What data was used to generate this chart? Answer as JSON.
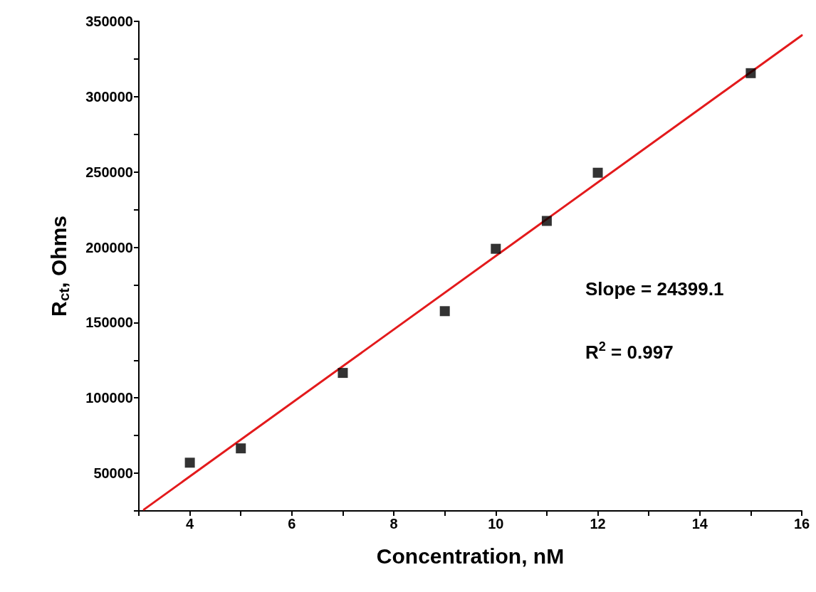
{
  "chart_data": {
    "type": "scatter",
    "xlabel": "Concentration, nM",
    "ylabel": "R$_{ct}$, Ohms",
    "xlim": [
      3,
      16
    ],
    "ylim": [
      25000,
      350000
    ],
    "xticks": [
      {
        "value": 3,
        "label": null
      },
      4,
      {
        "value": 5,
        "label": null
      },
      6,
      {
        "value": 7,
        "label": null
      },
      8,
      {
        "value": 9,
        "label": null
      },
      10,
      {
        "value": 11,
        "label": null
      },
      12,
      {
        "value": 13,
        "label": null
      },
      14,
      {
        "value": 15,
        "label": null
      },
      16
    ],
    "yticks": [
      {
        "value": 25000,
        "label": null
      },
      50000,
      {
        "value": 75000,
        "label": null
      },
      100000,
      {
        "value": 125000,
        "label": null
      },
      150000,
      {
        "value": 175000,
        "label": null
      },
      200000,
      {
        "value": 225000,
        "label": null
      },
      250000,
      {
        "value": 275000,
        "label": null
      },
      300000,
      {
        "value": 325000,
        "label": null
      },
      350000
    ],
    "marker": "square",
    "grid": false,
    "series": [
      {
        "color": "#000000",
        "x": [
          4,
          5,
          7,
          9,
          10,
          11,
          12,
          15
        ],
        "values": [
          57000,
          66500,
          116600,
          157600,
          199000,
          217500,
          249500,
          315600
        ]
      },
      {
        "type": "line",
        "color": "#e31a1c",
        "marker": "none",
        "line_style": "solid",
        "x": [
          3.1,
          16
        ],
        "values": [
          25900,
          340700
        ]
      }
    ],
    "annotations": [
      "Slope = 24399.1",
      "R$^{2}$ = 0.997"
    ]
  }
}
